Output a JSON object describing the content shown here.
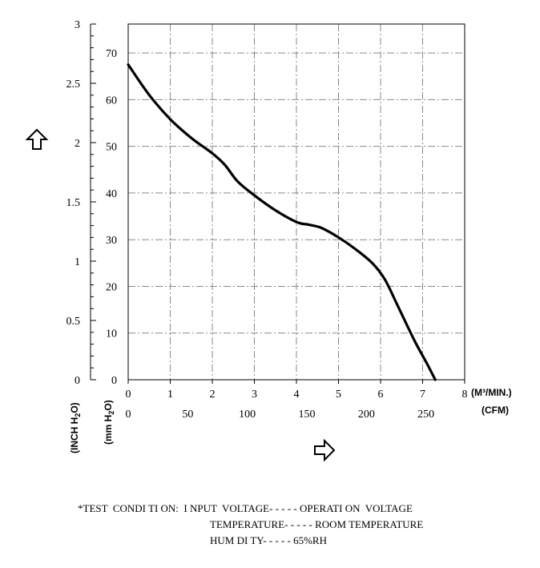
{
  "chart_data": {
    "type": "line",
    "title": "",
    "x_axes": [
      {
        "name": "m3_per_min",
        "label": "(M³/MIN.)",
        "range": [
          0,
          8
        ],
        "ticks": [
          0,
          1,
          2,
          3,
          4,
          5,
          6,
          7,
          8
        ]
      },
      {
        "name": "cfm",
        "label": "(CFM)",
        "range": [
          0,
          282.5
        ],
        "ticks": [
          0,
          50,
          100,
          150,
          200,
          250
        ]
      }
    ],
    "y_axes": [
      {
        "name": "inch_h2o",
        "label_main": "(INCH H",
        "label_sub": "2",
        "label_end": "O)",
        "range": [
          0,
          3
        ],
        "ticks": [
          0,
          0.5,
          1,
          1.5,
          2,
          2.5,
          3
        ],
        "tick_labels": [
          "0",
          "0.5",
          "1",
          "1.5",
          "2",
          "2.5",
          "3"
        ]
      },
      {
        "name": "mm_h2o",
        "label_main": "(mm H",
        "label_sub": "2",
        "label_end": "O)",
        "range": [
          0,
          76.2
        ],
        "ticks": [
          0,
          10,
          20,
          30,
          40,
          50,
          60,
          70
        ]
      }
    ],
    "grid": true,
    "series": [
      {
        "x_units": "m3_per_min",
        "y_units": "mm_h2o",
        "points": [
          [
            0.0,
            67.5
          ],
          [
            0.5,
            61.0
          ],
          [
            1.0,
            55.8
          ],
          [
            1.5,
            51.8
          ],
          [
            2.0,
            48.5
          ],
          [
            2.3,
            46.0
          ],
          [
            2.6,
            42.5
          ],
          [
            3.0,
            39.5
          ],
          [
            3.5,
            36.3
          ],
          [
            4.0,
            33.8
          ],
          [
            4.3,
            33.2
          ],
          [
            4.6,
            32.5
          ],
          [
            5.0,
            30.5
          ],
          [
            5.4,
            28.0
          ],
          [
            5.8,
            25.0
          ],
          [
            6.1,
            21.5
          ],
          [
            6.4,
            16.0
          ],
          [
            6.8,
            8.5
          ],
          [
            7.1,
            3.5
          ],
          [
            7.3,
            0.0
          ]
        ]
      }
    ]
  },
  "test_condition": {
    "line1": "*TEST  CONDI TI ON:  I NPUT  VOLTAGE- - - - - OPERATI ON  VOLTAGE",
    "line2": "TEMPERATURE- - - - - ROOM TEMPERATURE",
    "line3": "HUM DI TY- - - - - 65%RH"
  },
  "icons": {
    "up_arrow": "up-arrow-icon",
    "right_arrow": "right-arrow-icon"
  }
}
